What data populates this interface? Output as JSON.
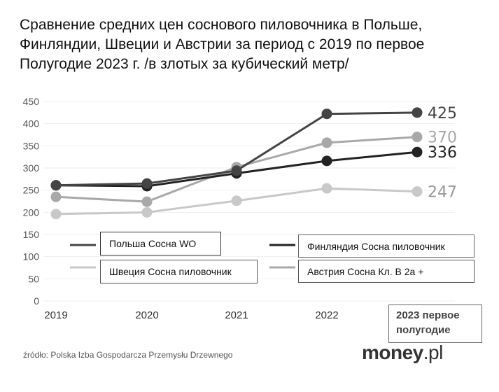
{
  "chart_data": {
    "type": "line",
    "title": "Сравнение средних цен соснового пиловочника в Польше, Финляндии, Швеции и Австрии за период с 2019 по первое Полугодие 2023 г. /в злотых за кубический метр/",
    "categories": [
      "2019",
      "2020",
      "2021",
      "2022",
      "2023 первое полугодие"
    ],
    "category_labels": [
      "2019",
      "2020",
      "2021",
      "2022"
    ],
    "ylim": [
      0,
      450
    ],
    "yticks": [
      0,
      50,
      100,
      150,
      200,
      250,
      300,
      350,
      400,
      450
    ],
    "grid": true,
    "series": [
      {
        "name": "Польша Сосна WO",
        "color": "#444444",
        "values": [
          261,
          265,
          294,
          422,
          425
        ],
        "end_label": "425"
      },
      {
        "name": "Финляндия Сосна пиловочник",
        "color": "#222222",
        "values": [
          261,
          259,
          288,
          316,
          336
        ],
        "end_label": "336"
      },
      {
        "name": "Швеция Сосна пиловочник",
        "color": "#c8c8c8",
        "values": [
          196,
          200,
          226,
          254,
          247
        ],
        "end_label": "247"
      },
      {
        "name": "Австрия Сосна Кл. B 2a +",
        "color": "#a8a8a8",
        "values": [
          235,
          224,
          302,
          357,
          370
        ],
        "end_label": "370"
      }
    ],
    "last_category_box": "2023 первое полугодие",
    "source": "źródło: Polska Izba Gospodarcza Przemysłu Drzewnego",
    "logo": {
      "main": "money",
      "suffix": ".pl"
    }
  }
}
